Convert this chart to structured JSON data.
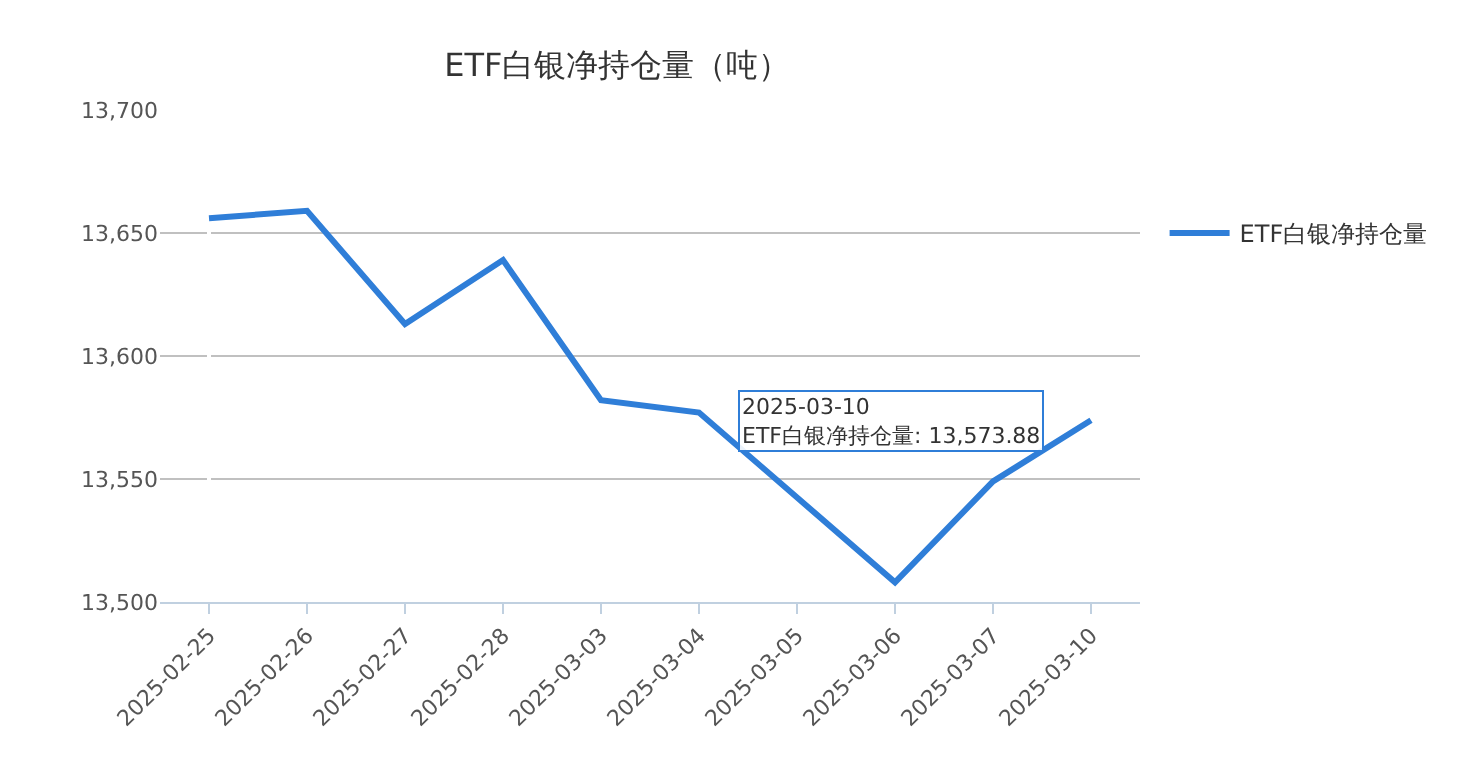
{
  "chart_data": {
    "type": "line",
    "title": "ETF白银净持仓量（吨）",
    "categories": [
      "2025-02-25",
      "2025-02-26",
      "2025-02-27",
      "2025-02-28",
      "2025-03-03",
      "2025-03-04",
      "2025-03-05",
      "2025-03-06",
      "2025-03-07",
      "2025-03-10"
    ],
    "series": [
      {
        "name": "ETF白银净持仓量",
        "color": "#2f7ed8",
        "values": [
          13656,
          13659,
          13613,
          13639,
          13582,
          13577,
          null,
          13508,
          13549,
          13573.88
        ]
      }
    ],
    "ylim": [
      13500,
      13700
    ],
    "yticks": [
      {
        "value": 13500,
        "label": "13,500"
      },
      {
        "value": 13550,
        "label": "13,550"
      },
      {
        "value": 13600,
        "label": "13,600"
      },
      {
        "value": 13650,
        "label": "13,650"
      },
      {
        "value": 13700,
        "label": "13,700"
      }
    ],
    "grid": "y",
    "legend": "right",
    "marker": "none",
    "line_style": "solid",
    "annotations": [
      {
        "text": "2025-03-10\nETF白银净持仓量: 13,573.88",
        "x": "2025-03-10",
        "y": 13573.88
      }
    ]
  }
}
